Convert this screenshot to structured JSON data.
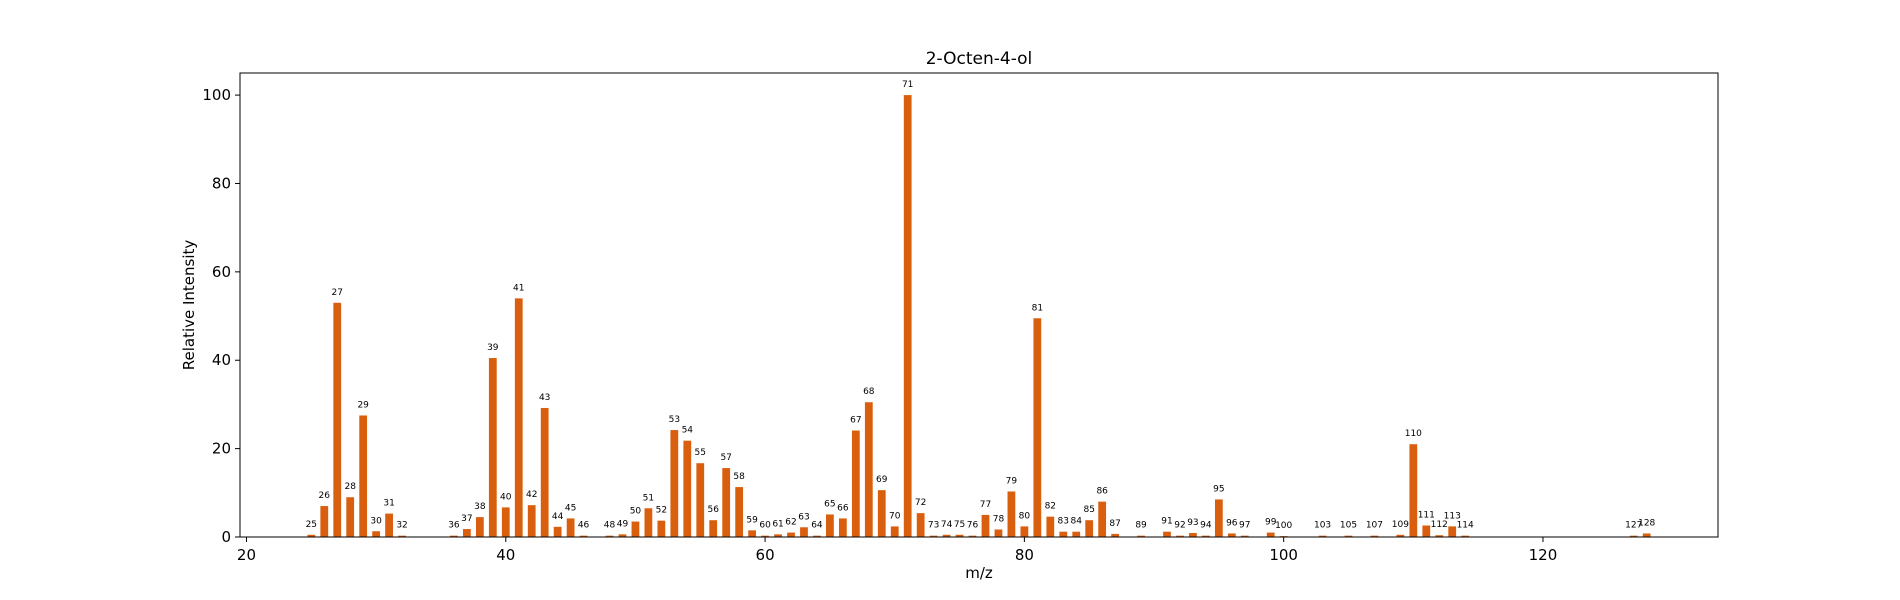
{
  "chart_data": {
    "type": "bar",
    "title": "2-Octen-4-ol",
    "xlabel": "m/z",
    "ylabel": "Relative Intensity",
    "xlim": [
      19.5,
      133.5
    ],
    "ylim": [
      0,
      105
    ],
    "xticks": [
      20,
      40,
      60,
      80,
      100,
      120
    ],
    "yticks": [
      0,
      20,
      40,
      60,
      80,
      100
    ],
    "grid": false,
    "bar_color": "#d95f0e",
    "points": [
      {
        "mz": 25,
        "intensity": 0.5
      },
      {
        "mz": 26,
        "intensity": 7
      },
      {
        "mz": 27,
        "intensity": 53
      },
      {
        "mz": 28,
        "intensity": 9
      },
      {
        "mz": 29,
        "intensity": 27.5
      },
      {
        "mz": 30,
        "intensity": 1.3
      },
      {
        "mz": 31,
        "intensity": 5.3
      },
      {
        "mz": 32,
        "intensity": 0.3
      },
      {
        "mz": 36,
        "intensity": 0.3
      },
      {
        "mz": 37,
        "intensity": 1.8
      },
      {
        "mz": 38,
        "intensity": 4.5
      },
      {
        "mz": 39,
        "intensity": 40.5
      },
      {
        "mz": 40,
        "intensity": 6.7
      },
      {
        "mz": 41,
        "intensity": 54
      },
      {
        "mz": 42,
        "intensity": 7.2
      },
      {
        "mz": 43,
        "intensity": 29.2
      },
      {
        "mz": 44,
        "intensity": 2.3
      },
      {
        "mz": 45,
        "intensity": 4.2
      },
      {
        "mz": 46,
        "intensity": 0.3
      },
      {
        "mz": 48,
        "intensity": 0.3
      },
      {
        "mz": 49,
        "intensity": 0.6
      },
      {
        "mz": 50,
        "intensity": 3.5
      },
      {
        "mz": 51,
        "intensity": 6.5
      },
      {
        "mz": 52,
        "intensity": 3.7
      },
      {
        "mz": 53,
        "intensity": 24.2
      },
      {
        "mz": 54,
        "intensity": 21.8
      },
      {
        "mz": 55,
        "intensity": 16.7
      },
      {
        "mz": 56,
        "intensity": 3.8
      },
      {
        "mz": 57,
        "intensity": 15.6
      },
      {
        "mz": 58,
        "intensity": 11.3
      },
      {
        "mz": 59,
        "intensity": 1.5
      },
      {
        "mz": 60,
        "intensity": 0.3
      },
      {
        "mz": 61,
        "intensity": 0.6
      },
      {
        "mz": 62,
        "intensity": 1.0
      },
      {
        "mz": 63,
        "intensity": 2.2
      },
      {
        "mz": 64,
        "intensity": 0.3
      },
      {
        "mz": 65,
        "intensity": 5.1
      },
      {
        "mz": 66,
        "intensity": 4.2
      },
      {
        "mz": 67,
        "intensity": 24.1
      },
      {
        "mz": 68,
        "intensity": 30.5
      },
      {
        "mz": 69,
        "intensity": 10.6
      },
      {
        "mz": 70,
        "intensity": 2.4
      },
      {
        "mz": 71,
        "intensity": 100
      },
      {
        "mz": 72,
        "intensity": 5.4
      },
      {
        "mz": 73,
        "intensity": 0.3
      },
      {
        "mz": 74,
        "intensity": 0.5
      },
      {
        "mz": 75,
        "intensity": 0.5
      },
      {
        "mz": 76,
        "intensity": 0.3
      },
      {
        "mz": 77,
        "intensity": 5.0
      },
      {
        "mz": 78,
        "intensity": 1.7
      },
      {
        "mz": 79,
        "intensity": 10.3
      },
      {
        "mz": 80,
        "intensity": 2.4
      },
      {
        "mz": 81,
        "intensity": 49.5
      },
      {
        "mz": 82,
        "intensity": 4.6
      },
      {
        "mz": 83,
        "intensity": 1.2
      },
      {
        "mz": 84,
        "intensity": 1.2
      },
      {
        "mz": 85,
        "intensity": 3.8
      },
      {
        "mz": 86,
        "intensity": 8.0
      },
      {
        "mz": 87,
        "intensity": 0.7
      },
      {
        "mz": 89,
        "intensity": 0.3
      },
      {
        "mz": 91,
        "intensity": 1.2
      },
      {
        "mz": 92,
        "intensity": 0.3
      },
      {
        "mz": 93,
        "intensity": 0.9
      },
      {
        "mz": 94,
        "intensity": 0.3
      },
      {
        "mz": 95,
        "intensity": 8.5
      },
      {
        "mz": 96,
        "intensity": 0.8
      },
      {
        "mz": 97,
        "intensity": 0.3
      },
      {
        "mz": 99,
        "intensity": 1.0
      },
      {
        "mz": 100,
        "intensity": 0.2
      },
      {
        "mz": 103,
        "intensity": 0.3
      },
      {
        "mz": 105,
        "intensity": 0.3
      },
      {
        "mz": 107,
        "intensity": 0.3
      },
      {
        "mz": 109,
        "intensity": 0.5
      },
      {
        "mz": 110,
        "intensity": 21
      },
      {
        "mz": 111,
        "intensity": 2.6
      },
      {
        "mz": 112,
        "intensity": 0.4
      },
      {
        "mz": 113,
        "intensity": 2.4
      },
      {
        "mz": 114,
        "intensity": 0.3
      },
      {
        "mz": 127,
        "intensity": 0.3
      },
      {
        "mz": 128,
        "intensity": 0.8
      }
    ]
  }
}
